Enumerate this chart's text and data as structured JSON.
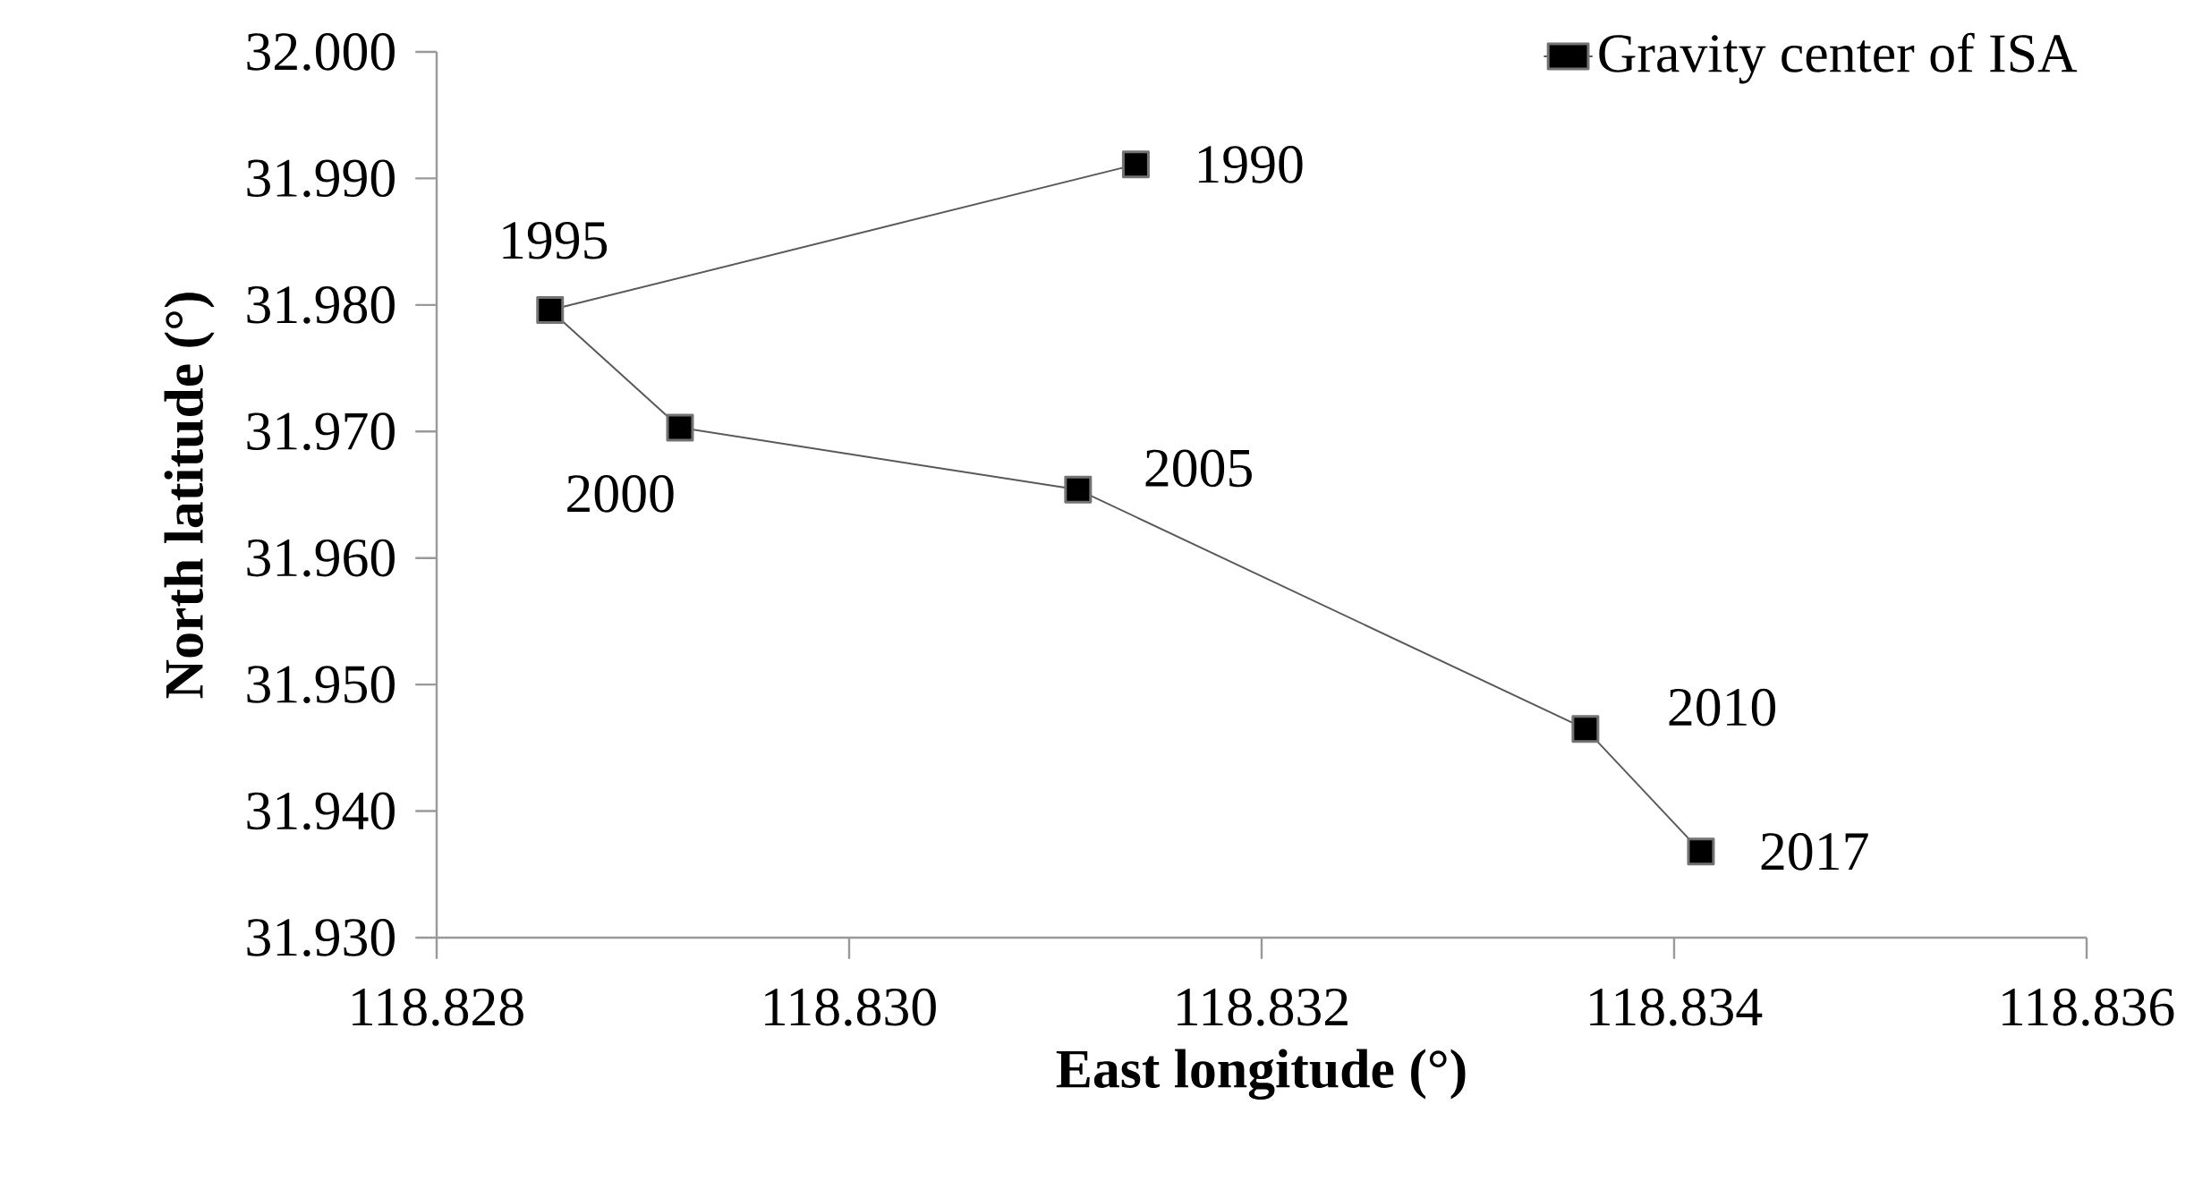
{
  "chart_data": {
    "type": "line",
    "xlabel": "East longitude (°)",
    "ylabel": "North latitude (°)",
    "x": [
      118.83139,
      118.82855,
      118.82918,
      118.83111,
      118.83357,
      118.83413
    ],
    "series": [
      {
        "name": "Gravity center of ISA",
        "color": "#595959",
        "values": [
          31.9911,
          31.9796,
          31.9703,
          31.9654,
          31.9465,
          31.9368
        ]
      }
    ],
    "marker": "square",
    "line_style": "solid",
    "legend": "top right",
    "xlim": [
      118.828,
      118.836
    ],
    "ylim": [
      31.93,
      32.0
    ],
    "xticks": [
      118.828,
      {
        "value": 118.83,
        "label": "118.830"
      },
      118.832,
      118.834,
      118.836
    ],
    "yticks": [
      {
        "value": 31.93,
        "label": "31.930"
      },
      {
        "value": 31.94,
        "label": "31.940"
      },
      {
        "value": 31.95,
        "label": "31.950"
      },
      {
        "value": 31.96,
        "label": "31.960"
      },
      {
        "value": 31.97,
        "label": "31.970"
      },
      {
        "value": 31.98,
        "label": "31.980"
      },
      {
        "value": 31.99,
        "label": "31.990"
      },
      {
        "value": 32.0,
        "label": "32.000"
      }
    ],
    "annotations": [
      {
        "text": "1990",
        "x": 118.83139,
        "y": 31.9911
      },
      {
        "text": "1995",
        "x": 118.82855,
        "y": 31.9796
      },
      {
        "text": "2000",
        "x": 118.82918,
        "y": 31.9703
      },
      {
        "text": "2005",
        "x": 118.83111,
        "y": 31.9654
      },
      {
        "text": "2010",
        "x": 118.83357,
        "y": 31.9465
      },
      {
        "text": "2017",
        "x": 118.83413,
        "y": 31.9368
      }
    ]
  }
}
